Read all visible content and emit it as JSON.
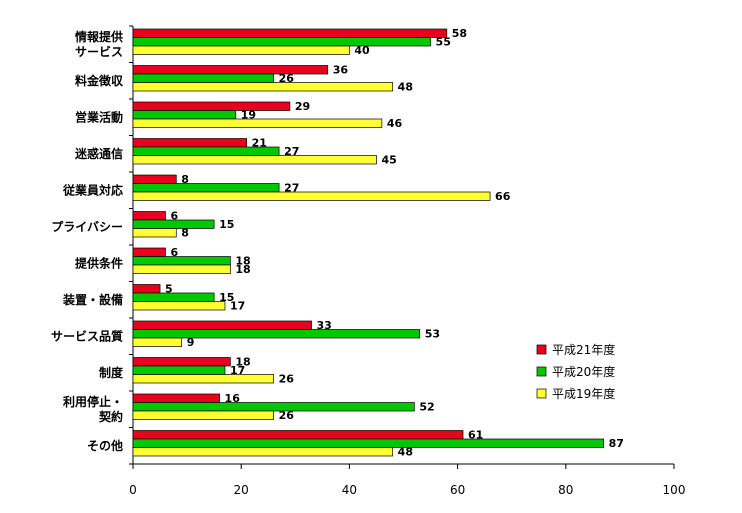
{
  "chart_data": {
    "type": "bar",
    "orientation": "horizontal",
    "categories": [
      [
        "情報提供",
        "サービス"
      ],
      [
        "料金徴収"
      ],
      [
        "営業活動"
      ],
      [
        "迷惑通信"
      ],
      [
        "従業員対応"
      ],
      [
        "プライバシー"
      ],
      [
        "提供条件"
      ],
      [
        "装置・設備"
      ],
      [
        "サービス品質"
      ],
      [
        "制度"
      ],
      [
        "利用停止・",
        "契約"
      ],
      [
        "その他"
      ]
    ],
    "series": [
      {
        "name": "平成21年度",
        "color": "#e8001c",
        "values": [
          58,
          36,
          29,
          21,
          8,
          6,
          6,
          5,
          33,
          18,
          16,
          61
        ]
      },
      {
        "name": "平成20年度",
        "color": "#00c800",
        "values": [
          55,
          26,
          19,
          27,
          27,
          15,
          18,
          15,
          53,
          17,
          52,
          87
        ]
      },
      {
        "name": "平成19年度",
        "color": "#ffff33",
        "values": [
          40,
          48,
          46,
          45,
          66,
          8,
          18,
          17,
          9,
          26,
          26,
          48
        ]
      }
    ],
    "xlim": [
      0,
      100
    ],
    "xticks": [
      0,
      20,
      40,
      60,
      80,
      100
    ],
    "grid": false,
    "legend_position": "right"
  }
}
